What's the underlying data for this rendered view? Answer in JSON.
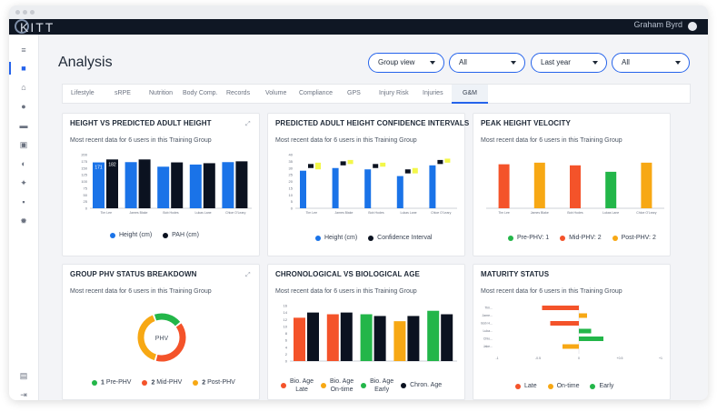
{
  "app": {
    "logo_text": "KITT",
    "user_name": "Graham Byrd"
  },
  "page": {
    "title": "Analysis"
  },
  "filters": [
    {
      "selected": "Group view"
    },
    {
      "selected": "All"
    },
    {
      "selected": "Last year"
    },
    {
      "selected": "All"
    }
  ],
  "tabs": [
    {
      "label": "Lifestyle"
    },
    {
      "label": "sRPE"
    },
    {
      "label": "Nutrition"
    },
    {
      "label": "Body Comp."
    },
    {
      "label": "Records"
    },
    {
      "label": "Volume"
    },
    {
      "label": "Compliance"
    },
    {
      "label": "GPS"
    },
    {
      "label": "Injury Risk"
    },
    {
      "label": "Injuries"
    },
    {
      "label": "G&M",
      "active": true
    }
  ],
  "colors": {
    "blue": "#1a73e8",
    "black": "#0b1220",
    "yellow": "#f3f74a",
    "orange_red": "#f4532a",
    "amber": "#f7a814",
    "green": "#23b649"
  },
  "cards": {
    "height_vs_pah": {
      "title": "HEIGHT VS PREDICTED ADULT HEIGHT",
      "subtitle": "Most recent data for 6 users in this Training Group",
      "legend": [
        "Height (cm)",
        "PAH (cm)"
      ]
    },
    "pah_ci": {
      "title": "PREDICTED ADULT HEIGHT CONFIDENCE INTERVALS",
      "subtitle": "Most recent data for 6 users in this Training Group",
      "legend": [
        "Height (cm)",
        "Confidence Interval"
      ]
    },
    "phv": {
      "title": "PEAK HEIGHT VELOCITY",
      "subtitle": "Most recent data for 6 users in this Training Group",
      "legend": [
        "Pre-PHV: 1",
        "Mid-PHV: 2",
        "Post-PHV: 2"
      ]
    },
    "phv_breakdown": {
      "title": "GROUP PHV STATUS BREAKDOWN",
      "subtitle": "Most recent data for 6 users in this Training Group",
      "center_label": "PHV",
      "legend": [
        {
          "count": "1",
          "label": "Pre-PHV"
        },
        {
          "count": "2",
          "label": "Mid-PHV"
        },
        {
          "count": "2",
          "label": "Post-PHV"
        }
      ]
    },
    "chrono_bio": {
      "title": "CHRONOLOGICAL VS BIOLOGICAL AGE",
      "subtitle": "Most recent data for 6 users in this Training Group",
      "legend": [
        {
          "line1": "Bio. Age",
          "line2": "Late"
        },
        {
          "line1": "Bio. Age",
          "line2": "On-time"
        },
        {
          "line1": "Bio. Age",
          "line2": "Early"
        },
        {
          "line1": "Chron. Age",
          "line2": ""
        }
      ]
    },
    "maturity": {
      "title": "MATURITY STATUS",
      "subtitle": "Most recent data for 6 users in this Training Group",
      "legend": [
        "Late",
        "On-time",
        "Early"
      ]
    }
  },
  "chart_data": [
    {
      "id": "height_vs_pah",
      "type": "bar",
      "categories": [
        "Tim Lee",
        "James Blake",
        "Bob Hodes",
        "Lukas Lane",
        "Chloe O'Leary"
      ],
      "series": [
        {
          "name": "Height (cm)",
          "values": [
            171,
            172,
            155,
            163,
            172
          ]
        },
        {
          "name": "PAH (cm)",
          "values": [
            182,
            182,
            171,
            168,
            175
          ]
        }
      ],
      "data_labels": [
        "171",
        "182"
      ],
      "y_ticks": [
        "0",
        "25",
        "50",
        "75",
        "100",
        "125",
        "150",
        "175",
        "200"
      ],
      "ylim": [
        0,
        200
      ]
    },
    {
      "id": "pah_ci",
      "type": "bar",
      "categories": [
        "Tim Lee",
        "James Blake",
        "Bob Hodes",
        "Lukas Lane",
        "Chloe O'Leary"
      ],
      "series": [
        {
          "name": "Height (cm)",
          "values": [
            28,
            30,
            29,
            24,
            32
          ]
        },
        {
          "name": "Confidence Interval",
          "low": [
            30,
            32,
            30,
            26,
            33
          ],
          "high": [
            33,
            35,
            33,
            29,
            36
          ]
        },
        {
          "name": "Confidence Interval",
          "low": [
            29,
            33,
            31,
            26,
            34
          ],
          "high": [
            34,
            36,
            34,
            30,
            37
          ]
        }
      ],
      "y_ticks": [
        "0",
        "5",
        "10",
        "15",
        "20",
        "25",
        "30",
        "35",
        "40"
      ],
      "ylim": [
        0,
        40
      ]
    },
    {
      "id": "phv",
      "type": "bar",
      "categories": [
        "Tim Lee",
        "James Blake",
        "Bob Hodes",
        "Lukas Lane",
        "Chloe O'Leary"
      ],
      "values": [
        82,
        85,
        80,
        68,
        85
      ],
      "bar_status": [
        "Mid-PHV",
        "Post-PHV",
        "Mid-PHV",
        "Pre-PHV",
        "Post-PHV"
      ],
      "ylim": [
        0,
        100
      ]
    },
    {
      "id": "phv_breakdown",
      "type": "pie",
      "labels": [
        "Pre-PHV",
        "Mid-PHV",
        "Post-PHV"
      ],
      "values": [
        1,
        2,
        2
      ]
    },
    {
      "id": "chrono_bio",
      "type": "bar",
      "categories": [
        "Tim Lee",
        "James Blake",
        "Bob Hodes",
        "Lukas Lane",
        "Chloe O'Leary"
      ],
      "series": [
        {
          "name": "Biological Age",
          "values": [
            12.5,
            13.5,
            13.5,
            11.5,
            14.5
          ],
          "status": [
            "Late",
            "Late",
            "Early",
            "On-time",
            "Early"
          ]
        },
        {
          "name": "Chron. Age",
          "values": [
            14,
            14,
            13,
            13,
            13.5
          ]
        }
      ],
      "y_ticks": [
        "0",
        "2",
        "4",
        "6",
        "8",
        "10",
        "12",
        "14",
        "16"
      ],
      "ylim": [
        0,
        16
      ]
    },
    {
      "id": "maturity",
      "type": "bar",
      "orientation": "horizontal",
      "categories": [
        "Tim...",
        "Jame...",
        "Bob H...",
        "Luka...",
        "Chlo...",
        "Jake..."
      ],
      "values": [
        -0.45,
        0.1,
        -0.35,
        0.15,
        0.3,
        -0.2
      ],
      "status": [
        "Late",
        "On-time",
        "Late",
        "Early",
        "Early",
        "On-time"
      ],
      "x_ticks": [
        "-1",
        "-0.5",
        "0",
        "+0.5",
        "+1"
      ],
      "xlim": [
        -1,
        1
      ]
    }
  ]
}
